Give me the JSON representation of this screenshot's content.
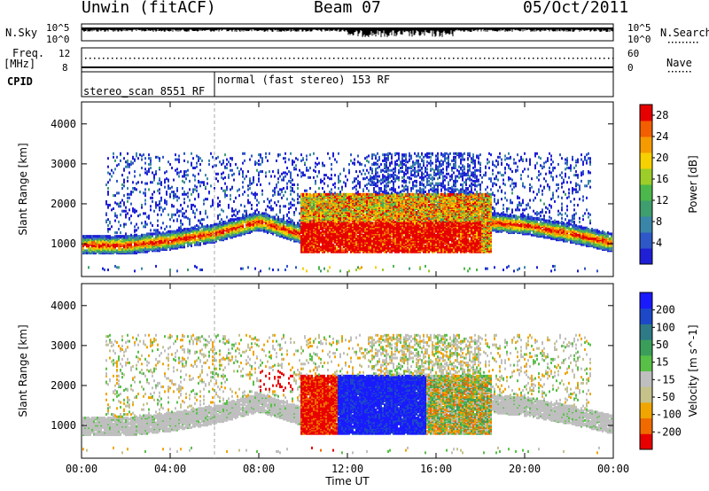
{
  "header": {
    "station": "Unwin (fitACF)",
    "beam": "Beam 07",
    "date": "05/Oct/2011"
  },
  "side_labels": {
    "nsky": "N.Sky",
    "freq": "Freq.",
    "freq_unit": "[MHz]",
    "cpid": "CPID",
    "nsearch": "N.Search",
    "nave": "Nave",
    "nsky_ticks": [
      "10^5",
      "10^0"
    ],
    "nsearch_ticks": [
      "10^5",
      "10^0"
    ],
    "freq_ticks": [
      "12",
      "8"
    ],
    "nave_ticks": [
      "60",
      "0"
    ]
  },
  "cpid_segments": [
    {
      "label": "stereo_scan 8551 RF",
      "start_hour": 0,
      "end_hour": 6
    },
    {
      "label": "normal (fast stereo) 153 RF",
      "start_hour": 6,
      "end_hour": 24
    }
  ],
  "colors": {
    "power": [
      "#1f1fd6",
      "#2e57c7",
      "#3a86a8",
      "#3f9e6e",
      "#4cb74a",
      "#9ccd28",
      "#f6d000",
      "#f59a00",
      "#f25e00",
      "#e60000"
    ],
    "velocity": [
      "#1a1aff",
      "#1d48c8",
      "#2e7a86",
      "#3a9e5a",
      "#58c047",
      "#bfbfbf",
      "#c5c28a",
      "#f0a500",
      "#f06a00",
      "#e80000"
    ]
  },
  "chart_data": [
    {
      "type": "heatmap",
      "panel": "power",
      "ylabel": "Slant Range [km]",
      "xlabel": "",
      "x_ticks": [
        "00:00",
        "04:00",
        "08:00",
        "12:00",
        "16:00",
        "20:00",
        "00:00"
      ],
      "xlim_hours": [
        0,
        24
      ],
      "y_ticks": [
        1000,
        2000,
        3000,
        4000
      ],
      "ylim": [
        180,
        4550
      ],
      "colorbar_label": "Power [dB]",
      "colorbar_ticks": [
        4,
        8,
        12,
        16,
        20,
        24,
        28
      ],
      "colorbar_range": [
        0,
        30
      ],
      "main_band_center_km": [
        1000,
        1000,
        1120,
        1300,
        1600,
        1250,
        1180,
        1180,
        1320,
        1600,
        1500,
        1300,
        1050
      ],
      "band_hours": [
        0,
        2,
        4,
        6,
        8,
        10,
        12,
        14,
        16,
        18,
        20,
        22,
        24
      ]
    },
    {
      "type": "heatmap",
      "panel": "velocity",
      "ylabel": "Slant Range [km]",
      "xlabel": "Time UT",
      "x_ticks": [
        "00:00",
        "04:00",
        "08:00",
        "12:00",
        "16:00",
        "20:00",
        "00:00"
      ],
      "xlim_hours": [
        0,
        24
      ],
      "y_ticks": [
        1000,
        2000,
        3000,
        4000
      ],
      "ylim": [
        180,
        4550
      ],
      "colorbar_label": "Velocity [m s^-1]",
      "colorbar_ticks": [
        200,
        100,
        50,
        15,
        -15,
        -50,
        -100,
        -200
      ],
      "colorbar_range": [
        -250,
        250
      ]
    }
  ]
}
